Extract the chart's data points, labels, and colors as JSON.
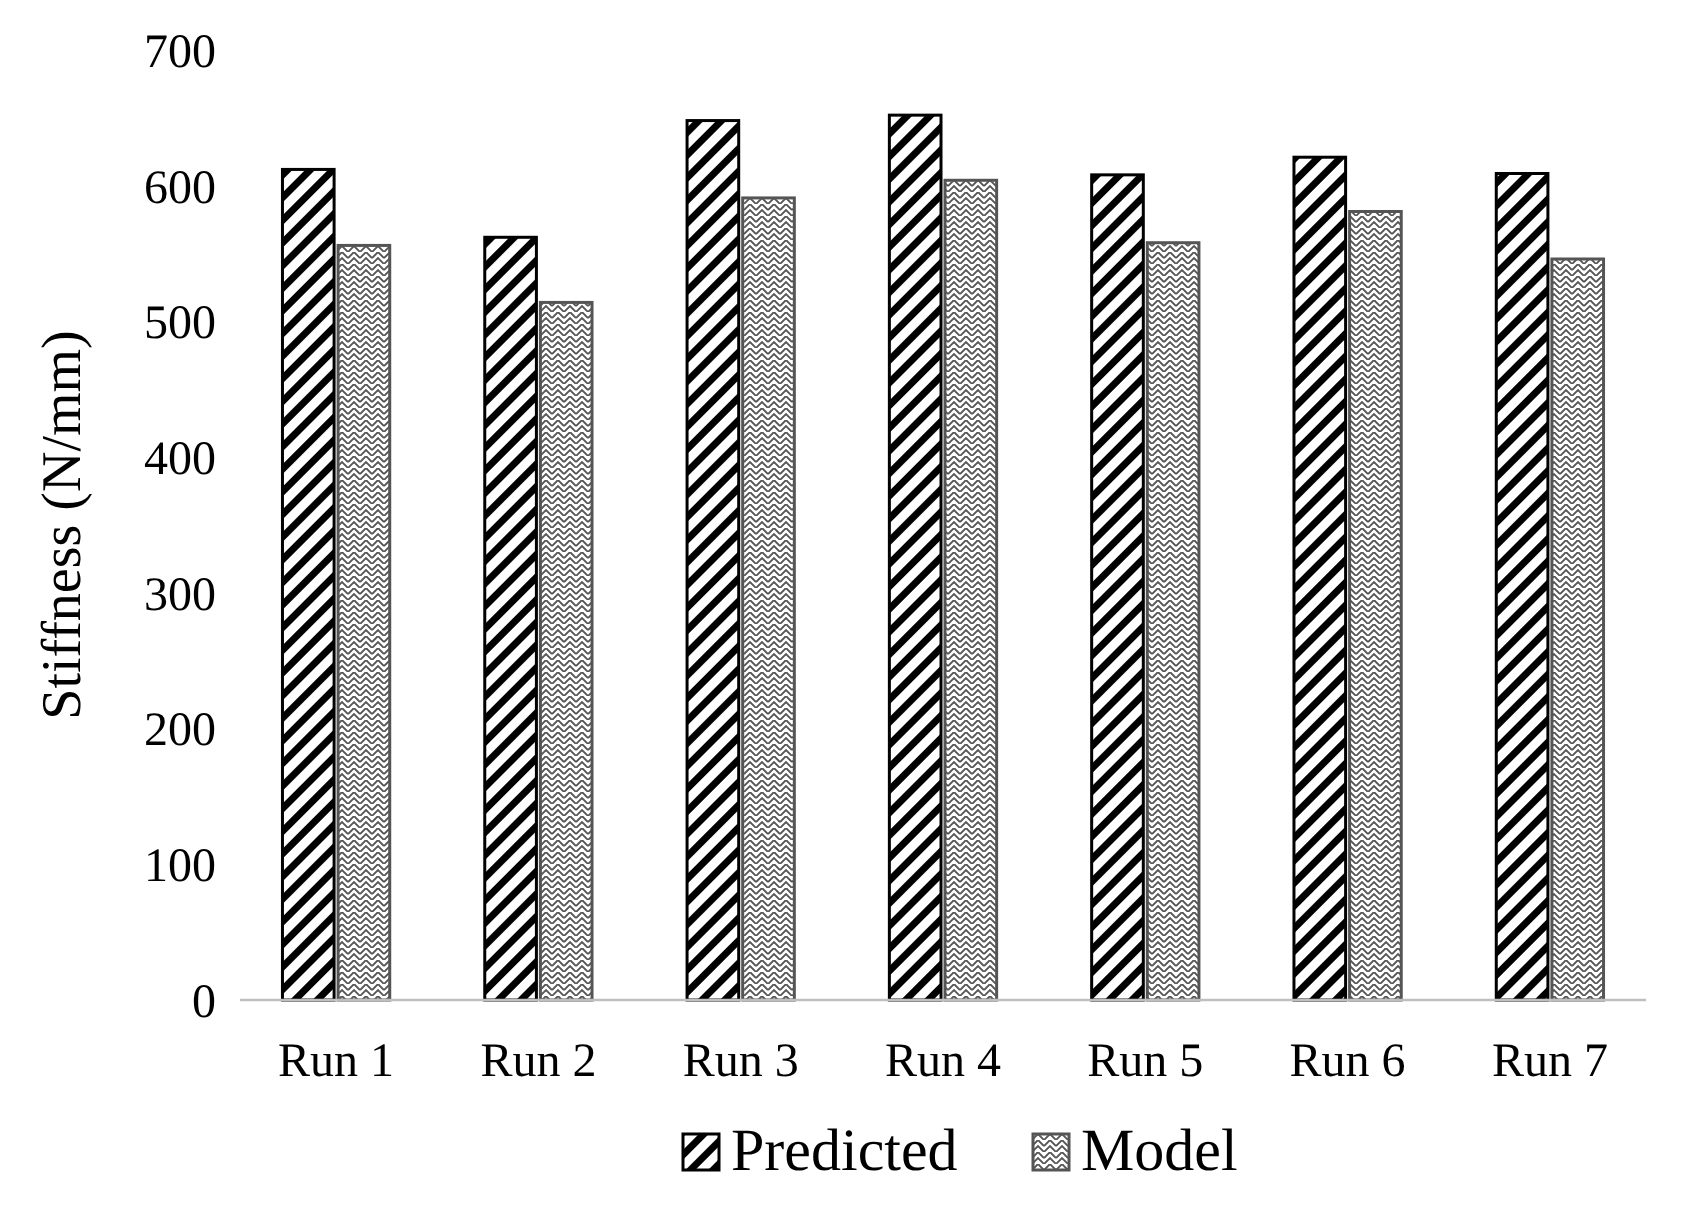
{
  "chart_data": {
    "type": "bar",
    "ylabel": "Stiffness (N/mm)",
    "categories": [
      "Run 1",
      "Run 2",
      "Run 3",
      "Run 4",
      "Run 5",
      "Run 6",
      "Run 7"
    ],
    "series": [
      {
        "name": "Predicted",
        "color": "#000000",
        "values": [
          612,
          562,
          648,
          652,
          608,
          621,
          609
        ]
      },
      {
        "name": "Model",
        "color": "#555555",
        "values": [
          556,
          514,
          591,
          604,
          558,
          581,
          546
        ]
      }
    ],
    "ylim": [
      0,
      700
    ],
    "yticks": [
      0,
      100,
      200,
      300,
      400,
      500,
      600,
      700
    ],
    "grid": false,
    "legend": "bottom"
  }
}
